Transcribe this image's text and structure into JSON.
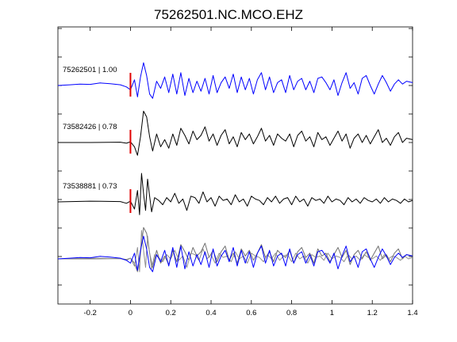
{
  "chart_data": {
    "type": "line",
    "title": "75262501.NC.MCO.EHZ",
    "xlabel": "",
    "ylabel": "",
    "xlim": [
      -0.36,
      1.4
    ],
    "xticks": [
      -0.2,
      0,
      0.2,
      0.4,
      0.6,
      0.8,
      1,
      1.2,
      1.4
    ],
    "xtick_labels": [
      "-0.2",
      "0",
      "0.2",
      "0.4",
      "0.6",
      "0.8",
      "1",
      "1.2",
      "1.4"
    ],
    "grid": false,
    "legend": "none",
    "pick_time": 0,
    "pick_color": "#e00000",
    "traces": [
      {
        "label": "75262501 | 1.00",
        "color": "#0000ff",
        "kind": "waveform",
        "x": [
          -0.36,
          -0.3,
          -0.25,
          -0.2,
          -0.15,
          -0.1,
          -0.05,
          -0.02,
          0.0,
          0.02,
          0.035,
          0.05,
          0.065,
          0.08,
          0.095,
          0.11,
          0.13,
          0.15,
          0.17,
          0.19,
          0.21,
          0.23,
          0.25,
          0.27,
          0.29,
          0.31,
          0.33,
          0.35,
          0.37,
          0.39,
          0.41,
          0.43,
          0.45,
          0.47,
          0.49,
          0.51,
          0.53,
          0.55,
          0.57,
          0.59,
          0.61,
          0.63,
          0.65,
          0.67,
          0.69,
          0.71,
          0.73,
          0.75,
          0.77,
          0.79,
          0.81,
          0.83,
          0.85,
          0.87,
          0.89,
          0.91,
          0.93,
          0.95,
          0.97,
          0.99,
          1.01,
          1.03,
          1.05,
          1.07,
          1.09,
          1.11,
          1.13,
          1.15,
          1.17,
          1.19,
          1.21,
          1.23,
          1.25,
          1.27,
          1.29,
          1.31,
          1.33,
          1.35,
          1.37,
          1.4
        ],
        "y": [
          0.0,
          0.05,
          0.1,
          0.08,
          0.18,
          0.12,
          0.05,
          -0.1,
          -0.3,
          0.4,
          -0.8,
          0.6,
          1.6,
          0.7,
          -0.6,
          -0.9,
          0.3,
          -0.2,
          0.6,
          -0.5,
          0.8,
          -0.6,
          0.9,
          -0.7,
          0.5,
          -0.5,
          0.3,
          -0.4,
          0.5,
          -0.6,
          0.7,
          -0.5,
          0.2,
          0.6,
          -0.2,
          0.8,
          -0.5,
          0.6,
          -0.3,
          0.5,
          -0.6,
          0.4,
          0.9,
          -0.3,
          0.6,
          -0.5,
          0.2,
          0.4,
          -0.5,
          0.7,
          -0.3,
          0.3,
          0.5,
          -0.3,
          0.3,
          -0.5,
          0.5,
          0.6,
          0.2,
          -0.3,
          0.4,
          -0.7,
          0.2,
          0.9,
          -0.2,
          0.2,
          -0.6,
          0.5,
          0.7,
          0.0,
          -0.6,
          0.1,
          0.7,
          0.2,
          -0.4,
          0.1,
          0.4,
          0.1,
          0.3,
          0.2
        ]
      },
      {
        "label": "73582426 | 0.78",
        "color": "#000000",
        "kind": "waveform",
        "x": [
          -0.36,
          -0.2,
          -0.05,
          -0.02,
          0.0,
          0.02,
          0.035,
          0.05,
          0.065,
          0.08,
          0.095,
          0.11,
          0.13,
          0.15,
          0.17,
          0.19,
          0.21,
          0.23,
          0.25,
          0.27,
          0.29,
          0.31,
          0.33,
          0.35,
          0.37,
          0.39,
          0.41,
          0.43,
          0.45,
          0.47,
          0.49,
          0.51,
          0.53,
          0.55,
          0.57,
          0.59,
          0.61,
          0.63,
          0.65,
          0.67,
          0.69,
          0.71,
          0.73,
          0.75,
          0.77,
          0.79,
          0.81,
          0.83,
          0.85,
          0.87,
          0.89,
          0.91,
          0.93,
          0.95,
          0.97,
          0.99,
          1.01,
          1.03,
          1.05,
          1.07,
          1.09,
          1.11,
          1.13,
          1.15,
          1.17,
          1.19,
          1.21,
          1.23,
          1.25,
          1.27,
          1.29,
          1.31,
          1.33,
          1.35,
          1.37,
          1.4
        ],
        "y": [
          0.0,
          0.0,
          0.02,
          -0.05,
          0.05,
          -0.3,
          -0.9,
          0.4,
          2.2,
          1.8,
          0.4,
          -0.6,
          0.6,
          -0.3,
          0.2,
          -0.4,
          0.6,
          -0.2,
          1.0,
          0.5,
          -0.1,
          0.8,
          0.2,
          0.5,
          1.1,
          0.1,
          0.6,
          -0.2,
          0.5,
          0.9,
          -0.1,
          0.4,
          -0.3,
          0.7,
          0.2,
          0.6,
          -0.1,
          0.4,
          1.0,
          0.1,
          0.5,
          -0.2,
          0.6,
          0.3,
          0.1,
          0.6,
          -0.3,
          0.5,
          0.8,
          0.1,
          0.4,
          -0.3,
          0.7,
          0.2,
          0.4,
          -0.2,
          0.3,
          0.8,
          0.1,
          0.6,
          -0.4,
          0.3,
          0.6,
          0.0,
          0.5,
          -0.1,
          0.4,
          0.9,
          0.0,
          0.3,
          -0.2,
          0.4,
          0.7,
          0.0,
          0.3,
          0.2
        ]
      },
      {
        "label": "73538881 | 0.73",
        "color": "#000000",
        "kind": "waveform",
        "x": [
          -0.36,
          -0.2,
          -0.05,
          -0.02,
          0.0,
          0.02,
          0.035,
          0.045,
          0.055,
          0.065,
          0.075,
          0.085,
          0.095,
          0.105,
          0.12,
          0.14,
          0.16,
          0.18,
          0.2,
          0.22,
          0.24,
          0.26,
          0.28,
          0.3,
          0.32,
          0.34,
          0.36,
          0.38,
          0.4,
          0.42,
          0.44,
          0.46,
          0.48,
          0.5,
          0.52,
          0.54,
          0.56,
          0.58,
          0.6,
          0.62,
          0.64,
          0.66,
          0.68,
          0.7,
          0.72,
          0.74,
          0.76,
          0.78,
          0.8,
          0.82,
          0.84,
          0.86,
          0.88,
          0.9,
          0.92,
          0.94,
          0.96,
          0.98,
          1.0,
          1.02,
          1.04,
          1.06,
          1.08,
          1.1,
          1.12,
          1.14,
          1.16,
          1.18,
          1.2,
          1.22,
          1.24,
          1.26,
          1.28,
          1.3,
          1.32,
          1.34,
          1.36,
          1.38,
          1.4
        ],
        "y": [
          0.0,
          0.05,
          0.02,
          -0.1,
          0.05,
          -0.5,
          0.8,
          -0.9,
          2.0,
          0.6,
          -0.6,
          1.6,
          0.4,
          -0.7,
          0.3,
          0.1,
          -0.2,
          0.3,
          0.0,
          0.6,
          -0.1,
          0.2,
          -0.6,
          0.4,
          0.3,
          -0.1,
          0.7,
          0.0,
          0.3,
          -0.3,
          0.4,
          0.1,
          0.2,
          -0.2,
          0.5,
          0.0,
          0.2,
          -0.3,
          0.4,
          0.2,
          0.1,
          -0.2,
          0.3,
          0.0,
          0.4,
          -0.1,
          0.2,
          0.3,
          -0.2,
          0.4,
          0.0,
          0.2,
          -0.3,
          0.3,
          0.1,
          0.2,
          -0.1,
          0.4,
          0.0,
          0.2,
          0.1,
          -0.2,
          0.3,
          0.0,
          0.2,
          -0.1,
          0.3,
          0.1,
          0.0,
          0.2,
          -0.1,
          0.3,
          0.0,
          0.2,
          0.1,
          -0.1,
          0.2,
          0.0,
          0.1
        ]
      },
      {
        "label": "",
        "color": "#0000ff",
        "kind": "overlay",
        "x": [
          -0.36,
          -0.3,
          -0.25,
          -0.2,
          -0.15,
          -0.1,
          -0.05,
          -0.02,
          0.0,
          0.02,
          0.035,
          0.05,
          0.065,
          0.08,
          0.095,
          0.11,
          0.13,
          0.15,
          0.17,
          0.19,
          0.21,
          0.23,
          0.25,
          0.27,
          0.29,
          0.31,
          0.33,
          0.35,
          0.37,
          0.39,
          0.41,
          0.43,
          0.45,
          0.47,
          0.49,
          0.51,
          0.53,
          0.55,
          0.57,
          0.59,
          0.61,
          0.63,
          0.65,
          0.67,
          0.69,
          0.71,
          0.73,
          0.75,
          0.77,
          0.79,
          0.81,
          0.83,
          0.85,
          0.87,
          0.89,
          0.91,
          0.93,
          0.95,
          0.97,
          0.99,
          1.01,
          1.03,
          1.05,
          1.07,
          1.09,
          1.11,
          1.13,
          1.15,
          1.17,
          1.19,
          1.21,
          1.23,
          1.25,
          1.27,
          1.29,
          1.31,
          1.33,
          1.35,
          1.37,
          1.4
        ],
        "y": [
          0.0,
          0.05,
          0.1,
          0.08,
          0.18,
          0.12,
          0.05,
          -0.1,
          -0.3,
          0.4,
          -0.8,
          0.6,
          1.6,
          0.7,
          -0.6,
          -0.9,
          0.3,
          -0.2,
          0.6,
          -0.5,
          0.8,
          -0.6,
          0.9,
          -0.7,
          0.5,
          -0.5,
          0.3,
          -0.4,
          0.5,
          -0.6,
          0.7,
          -0.5,
          0.2,
          0.6,
          -0.2,
          0.8,
          -0.5,
          0.6,
          -0.3,
          0.5,
          -0.6,
          0.4,
          0.9,
          -0.3,
          0.6,
          -0.5,
          0.2,
          0.4,
          -0.5,
          0.7,
          -0.3,
          0.3,
          0.5,
          -0.3,
          0.3,
          -0.5,
          0.5,
          0.6,
          0.2,
          -0.3,
          0.4,
          -0.7,
          0.2,
          0.9,
          -0.2,
          0.2,
          -0.6,
          0.5,
          0.7,
          0.0,
          -0.6,
          0.1,
          0.7,
          0.2,
          -0.4,
          0.1,
          0.4,
          0.1,
          0.3,
          0.2
        ]
      },
      {
        "label": "",
        "color": "#707070",
        "kind": "overlay",
        "x": [
          -0.36,
          -0.2,
          -0.05,
          -0.02,
          0.0,
          0.02,
          0.035,
          0.05,
          0.065,
          0.08,
          0.095,
          0.11,
          0.13,
          0.15,
          0.17,
          0.19,
          0.21,
          0.23,
          0.25,
          0.27,
          0.29,
          0.31,
          0.33,
          0.35,
          0.37,
          0.39,
          0.41,
          0.43,
          0.45,
          0.47,
          0.49,
          0.51,
          0.53,
          0.55,
          0.57,
          0.59,
          0.61,
          0.63,
          0.65,
          0.67,
          0.69,
          0.71,
          0.73,
          0.75,
          0.77,
          0.79,
          0.81,
          0.83,
          0.85,
          0.87,
          0.89,
          0.91,
          0.93,
          0.95,
          0.97,
          0.99,
          1.01,
          1.03,
          1.05,
          1.07,
          1.09,
          1.11,
          1.13,
          1.15,
          1.17,
          1.19,
          1.21,
          1.23,
          1.25,
          1.27,
          1.29,
          1.31,
          1.33,
          1.35,
          1.37,
          1.4
        ],
        "y": [
          0.0,
          0.0,
          0.02,
          -0.05,
          0.05,
          -0.3,
          -0.9,
          0.4,
          2.2,
          1.8,
          0.4,
          -0.6,
          0.6,
          -0.3,
          0.2,
          -0.4,
          0.6,
          -0.2,
          1.0,
          0.5,
          -0.1,
          0.8,
          0.2,
          0.5,
          1.1,
          0.1,
          0.6,
          -0.2,
          0.5,
          0.9,
          -0.1,
          0.4,
          -0.3,
          0.7,
          0.2,
          0.6,
          -0.1,
          0.4,
          1.0,
          0.1,
          0.5,
          -0.2,
          0.6,
          0.3,
          0.1,
          0.6,
          -0.3,
          0.5,
          0.8,
          0.1,
          0.4,
          -0.3,
          0.7,
          0.2,
          0.4,
          -0.2,
          0.3,
          0.8,
          0.1,
          0.6,
          -0.4,
          0.3,
          0.6,
          0.0,
          0.5,
          -0.1,
          0.4,
          0.9,
          0.0,
          0.3,
          -0.2,
          0.4,
          0.7,
          0.0,
          0.3,
          0.2
        ]
      },
      {
        "label": "",
        "color": "#909090",
        "kind": "overlay",
        "x": [
          -0.36,
          -0.2,
          -0.05,
          -0.02,
          0.0,
          0.02,
          0.035,
          0.045,
          0.055,
          0.065,
          0.075,
          0.085,
          0.095,
          0.105,
          0.12,
          0.14,
          0.16,
          0.18,
          0.2,
          0.22,
          0.24,
          0.26,
          0.28,
          0.3,
          0.32,
          0.34,
          0.36,
          0.38,
          0.4,
          0.42,
          0.44,
          0.46,
          0.48,
          0.5,
          0.52,
          0.54,
          0.56,
          0.58,
          0.6,
          0.62,
          0.64,
          0.66,
          0.68,
          0.7,
          0.72,
          0.74,
          0.76,
          0.78,
          0.8,
          0.82,
          0.84,
          0.86,
          0.88,
          0.9,
          0.92,
          0.94,
          0.96,
          0.98,
          1.0,
          1.02,
          1.04,
          1.06,
          1.08,
          1.1,
          1.12,
          1.14,
          1.16,
          1.18,
          1.2,
          1.22,
          1.24,
          1.26,
          1.28,
          1.3,
          1.32,
          1.34,
          1.36,
          1.38,
          1.4
        ],
        "y": [
          0.0,
          0.05,
          0.02,
          -0.1,
          0.05,
          -0.5,
          0.8,
          -0.9,
          2.0,
          0.6,
          -0.6,
          1.6,
          0.4,
          -0.7,
          0.3,
          0.1,
          -0.2,
          0.3,
          0.0,
          0.6,
          -0.1,
          0.2,
          -0.6,
          0.4,
          0.3,
          -0.1,
          0.7,
          0.0,
          0.3,
          -0.3,
          0.4,
          0.1,
          0.2,
          -0.2,
          0.5,
          0.0,
          0.2,
          -0.3,
          0.4,
          0.2,
          0.1,
          -0.2,
          0.3,
          0.0,
          0.4,
          -0.1,
          0.2,
          0.3,
          -0.2,
          0.4,
          0.0,
          0.2,
          -0.3,
          0.3,
          0.1,
          0.2,
          -0.1,
          0.4,
          0.0,
          0.2,
          0.1,
          -0.2,
          0.3,
          0.0,
          0.2,
          -0.1,
          0.3,
          0.1,
          0.0,
          0.2,
          -0.1,
          0.3,
          0.0,
          0.2,
          0.1,
          -0.1,
          0.2,
          0.0,
          0.1
        ]
      }
    ]
  }
}
